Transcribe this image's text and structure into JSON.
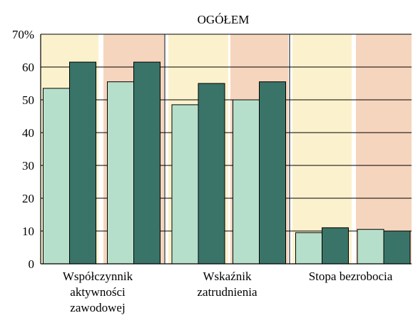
{
  "chart_data": {
    "type": "bar",
    "title": "OGÓŁEM",
    "y_tick_labels": [
      "0",
      "10",
      "20",
      "30",
      "40",
      "50",
      "60",
      "70%"
    ],
    "ylim": [
      0,
      70
    ],
    "categories": [
      {
        "label_lines": [
          "Współczynnik",
          "aktywności",
          "zawodowej"
        ]
      },
      {
        "label_lines": [
          "Wskaźnik",
          "zatrudnienia"
        ]
      },
      {
        "label_lines": [
          "Stopa bezrobocia"
        ]
      }
    ],
    "groups": [
      {
        "category": 0,
        "background": "#fbf2cd",
        "values": [
          53.5,
          61.5
        ]
      },
      {
        "category": 0,
        "background": "#f6d5be",
        "values": [
          55.5,
          61.5
        ]
      },
      {
        "category": 1,
        "background": "#fbf2cd",
        "values": [
          48.5,
          55
        ]
      },
      {
        "category": 1,
        "background": "#f6d5be",
        "values": [
          50,
          55.5
        ]
      },
      {
        "category": 2,
        "background": "#fbf2cd",
        "values": [
          9.5,
          11
        ]
      },
      {
        "category": 2,
        "background": "#f6d5be",
        "values": [
          10.5,
          10
        ]
      }
    ],
    "series_colors": [
      "#b6dfcb",
      "#3a7468"
    ],
    "grid": true
  }
}
